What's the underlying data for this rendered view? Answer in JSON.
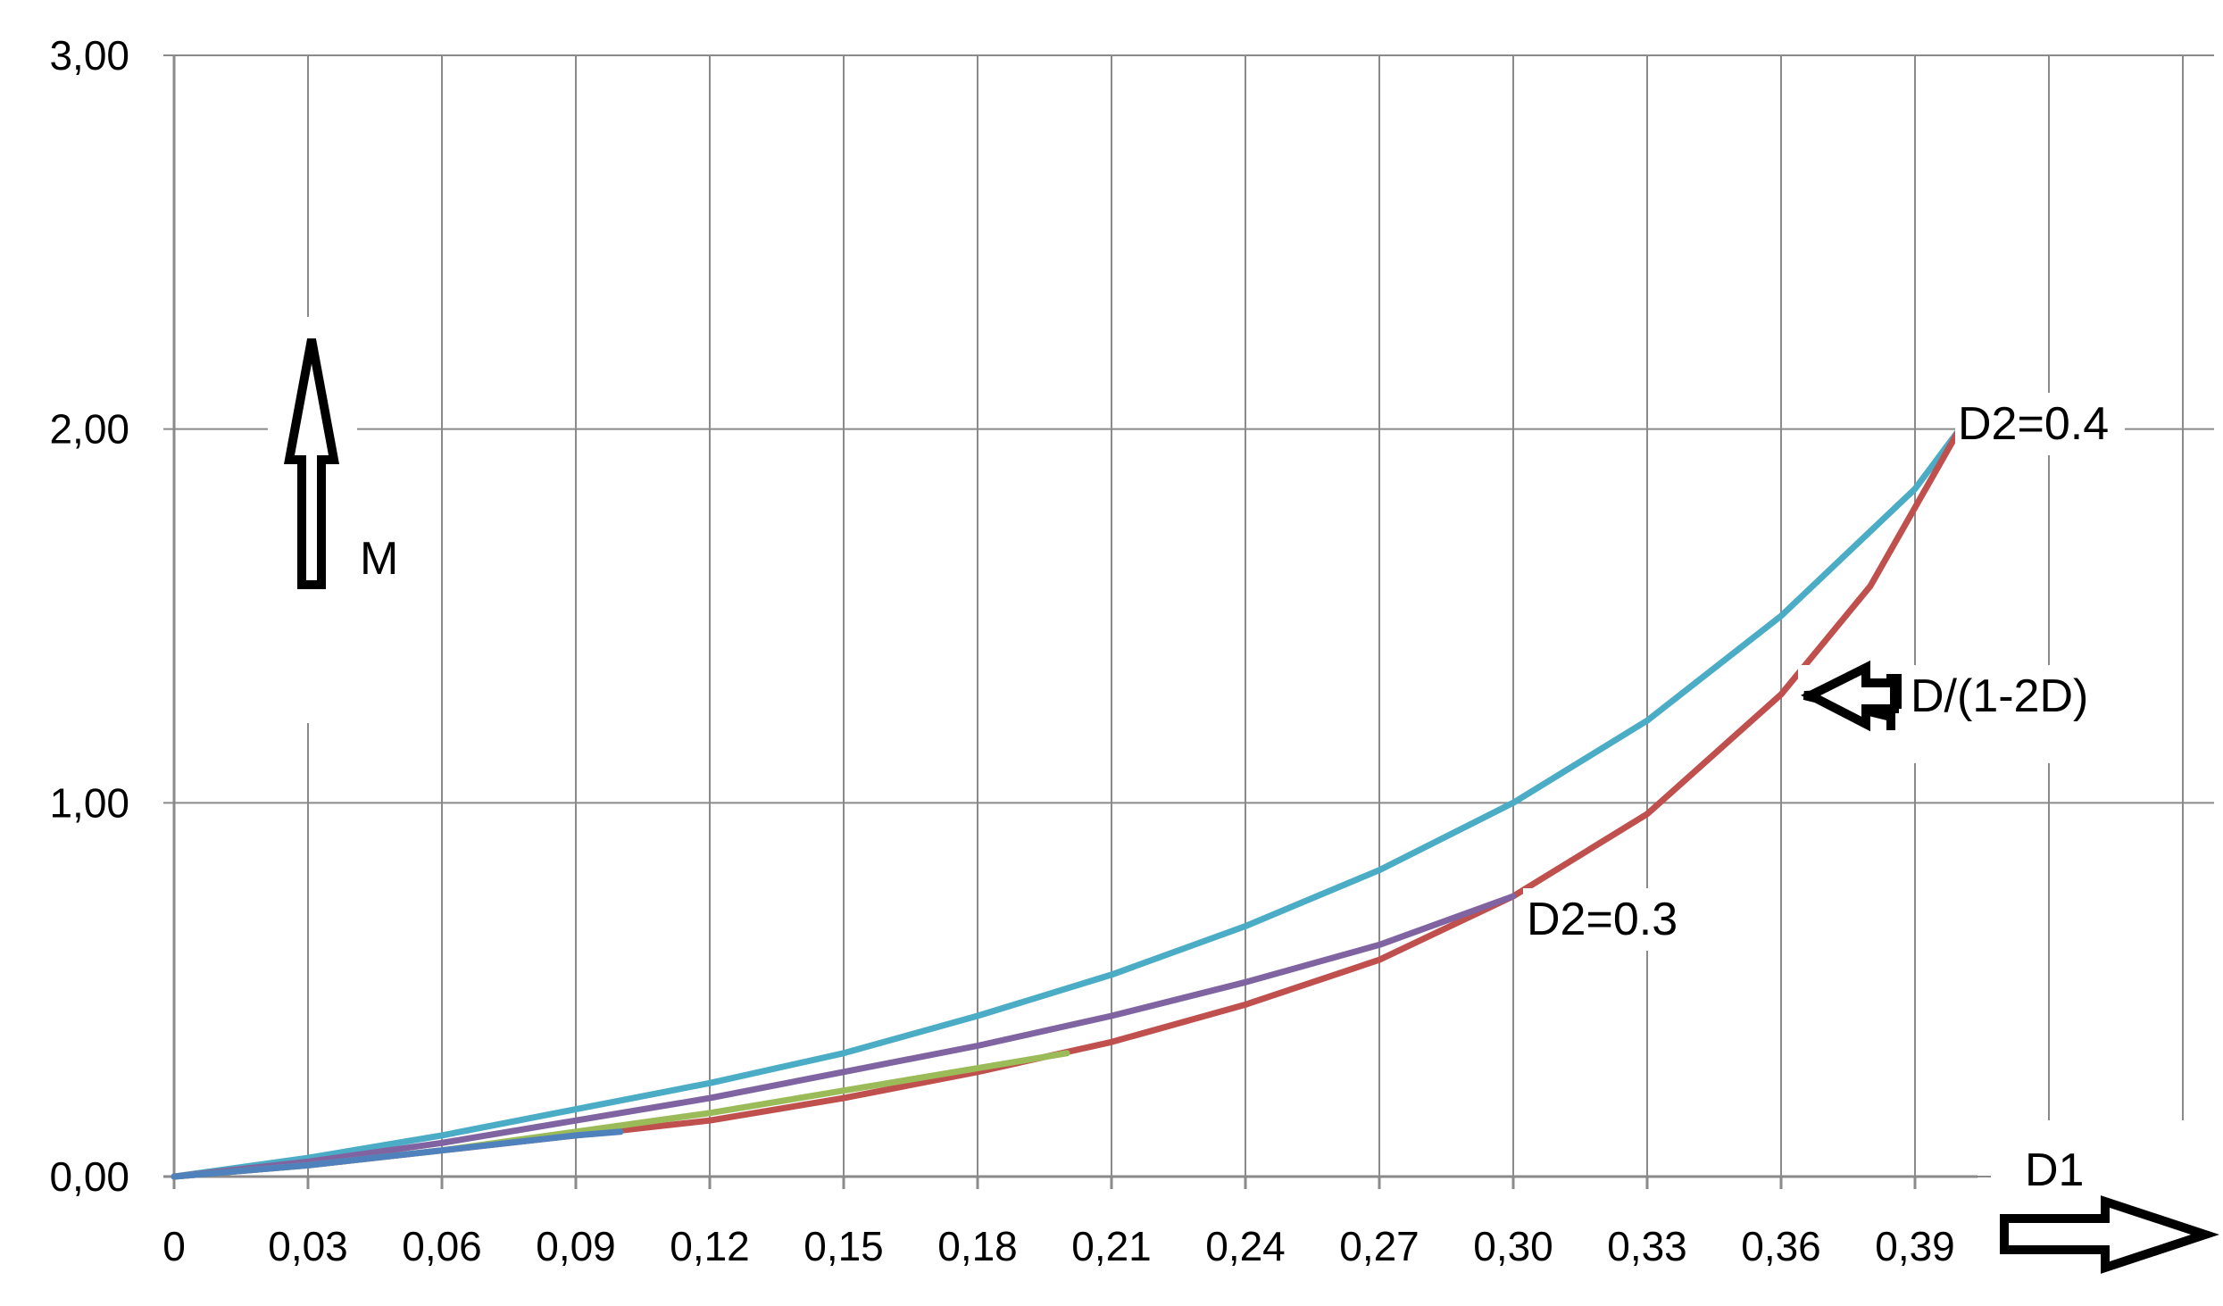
{
  "chart_data": {
    "type": "line",
    "title": "",
    "xlabel": "D1",
    "ylabel": "M",
    "xlim": [
      0,
      0.42
    ],
    "ylim": [
      0,
      3
    ],
    "grid": true,
    "x_ticks": [
      "0",
      "0,03",
      "0,06",
      "0,09",
      "0,12",
      "0,15",
      "0,18",
      "0,21",
      "0,24",
      "0,27",
      "0,30",
      "0,33",
      "0,36",
      "0,39"
    ],
    "y_ticks": [
      "0,00",
      "1,00",
      "2,00",
      "3,00"
    ],
    "series": [
      {
        "color": "#4bacc6",
        "x": [
          0,
          0.03,
          0.06,
          0.09,
          0.12,
          0.15,
          0.18,
          0.21,
          0.24,
          0.27,
          0.3,
          0.33,
          0.36,
          0.39,
          0.4
        ],
        "values": [
          0,
          0.05,
          0.11,
          0.18,
          0.25,
          0.33,
          0.43,
          0.54,
          0.67,
          0.82,
          1.0,
          1.22,
          1.5,
          1.84,
          2.0
        ]
      },
      {
        "color": "#c0504d",
        "x": [
          0,
          0.03,
          0.06,
          0.09,
          0.12,
          0.15,
          0.18,
          0.21,
          0.24,
          0.27,
          0.3,
          0.33,
          0.36,
          0.38,
          0.4
        ],
        "values": [
          0,
          0.03,
          0.07,
          0.11,
          0.15,
          0.21,
          0.28,
          0.36,
          0.46,
          0.58,
          0.75,
          0.97,
          1.29,
          1.58,
          2.0
        ]
      },
      {
        "color": "#8064a2",
        "x": [
          0,
          0.03,
          0.06,
          0.09,
          0.12,
          0.15,
          0.18,
          0.21,
          0.24,
          0.27,
          0.3
        ],
        "values": [
          0,
          0.04,
          0.09,
          0.15,
          0.21,
          0.28,
          0.35,
          0.43,
          0.52,
          0.62,
          0.75
        ]
      },
      {
        "color": "#9bbb59",
        "x": [
          0,
          0.03,
          0.06,
          0.09,
          0.12,
          0.15,
          0.18,
          0.2
        ],
        "values": [
          0,
          0.03,
          0.07,
          0.12,
          0.17,
          0.23,
          0.29,
          0.33
        ]
      },
      {
        "color": "#4f81bd",
        "x": [
          0,
          0.03,
          0.06,
          0.09,
          0.1
        ],
        "values": [
          0,
          0.03,
          0.07,
          0.11,
          0.12
        ]
      }
    ],
    "annotations": [
      {
        "text": "D2=0.4"
      },
      {
        "text": "D2=0.3"
      },
      {
        "text": "D/(1-2D)"
      }
    ]
  }
}
